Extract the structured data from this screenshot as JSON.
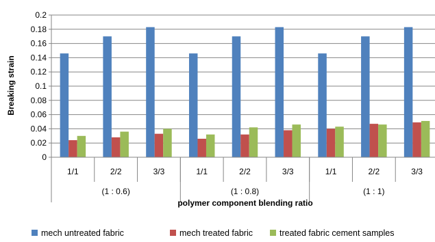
{
  "chart_data": {
    "type": "bar",
    "title": "",
    "xlabel": "polymer component blending ratio",
    "ylabel": "Breaking strain",
    "ylim": [
      0,
      0.2
    ],
    "yticks": [
      "0",
      "0.02",
      "0.04",
      "0.06",
      "0.08",
      "0.1",
      "0.12",
      "0.14",
      "0.16",
      "0.18",
      "0.2"
    ],
    "grid": true,
    "legend_position": "bottom",
    "groups": [
      {
        "label": "(1 : 0.6)",
        "categories": [
          "1/1",
          "2/2",
          "3/3"
        ]
      },
      {
        "label": "(1 : 0.8)",
        "categories": [
          "1/1",
          "2/2",
          "3/3"
        ]
      },
      {
        "label": "(1 : 1)",
        "categories": [
          "1/1",
          "2/2",
          "3/3"
        ]
      }
    ],
    "series": [
      {
        "name": "mech untreated fabric",
        "color": "#4F81BD",
        "values": [
          0.146,
          0.17,
          0.183,
          0.146,
          0.17,
          0.183,
          0.146,
          0.17,
          0.183
        ]
      },
      {
        "name": "mech treated  fabric",
        "color": "#C0504D",
        "values": [
          0.024,
          0.028,
          0.033,
          0.026,
          0.032,
          0.038,
          0.04,
          0.047,
          0.049
        ]
      },
      {
        "name": "treated fabric  cement samples",
        "color": "#9BBB59",
        "values": [
          0.03,
          0.036,
          0.04,
          0.032,
          0.042,
          0.046,
          0.043,
          0.046,
          0.051
        ]
      }
    ]
  }
}
